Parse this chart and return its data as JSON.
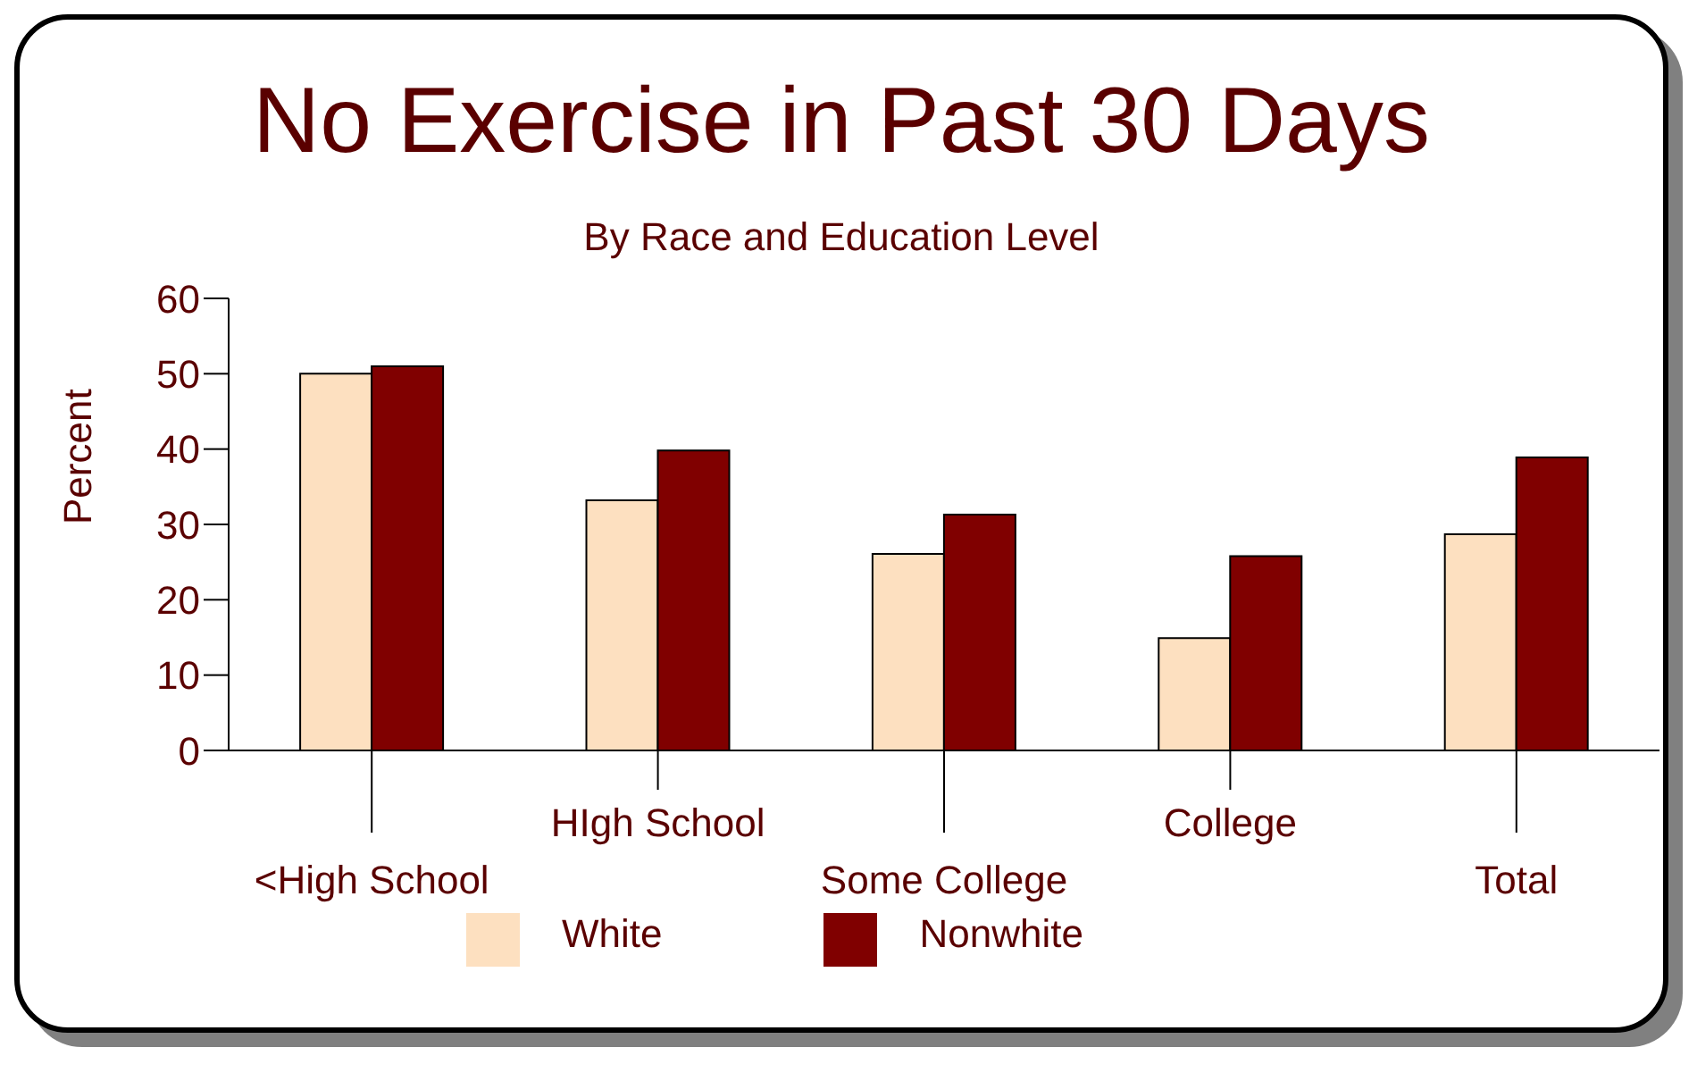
{
  "chart_data": {
    "type": "bar",
    "title": "No Exercise in Past 30 Days",
    "subtitle": "By Race and Education Level",
    "ylabel": "Percent",
    "categories": [
      "<High School",
      "HIgh School",
      "Some College",
      "College",
      "Total"
    ],
    "series": [
      {
        "name": "White",
        "color": "#fde0c0",
        "values": [
          50,
          33.2,
          26.1,
          14.9,
          28.7
        ]
      },
      {
        "name": "Nonwhite",
        "color": "#800000",
        "values": [
          51,
          39.8,
          31.3,
          25.8,
          38.9
        ]
      }
    ],
    "ylim": [
      0,
      60
    ],
    "yticks": [
      0,
      10,
      20,
      30,
      40,
      50,
      60
    ],
    "grid": false,
    "legend": "bottom"
  }
}
